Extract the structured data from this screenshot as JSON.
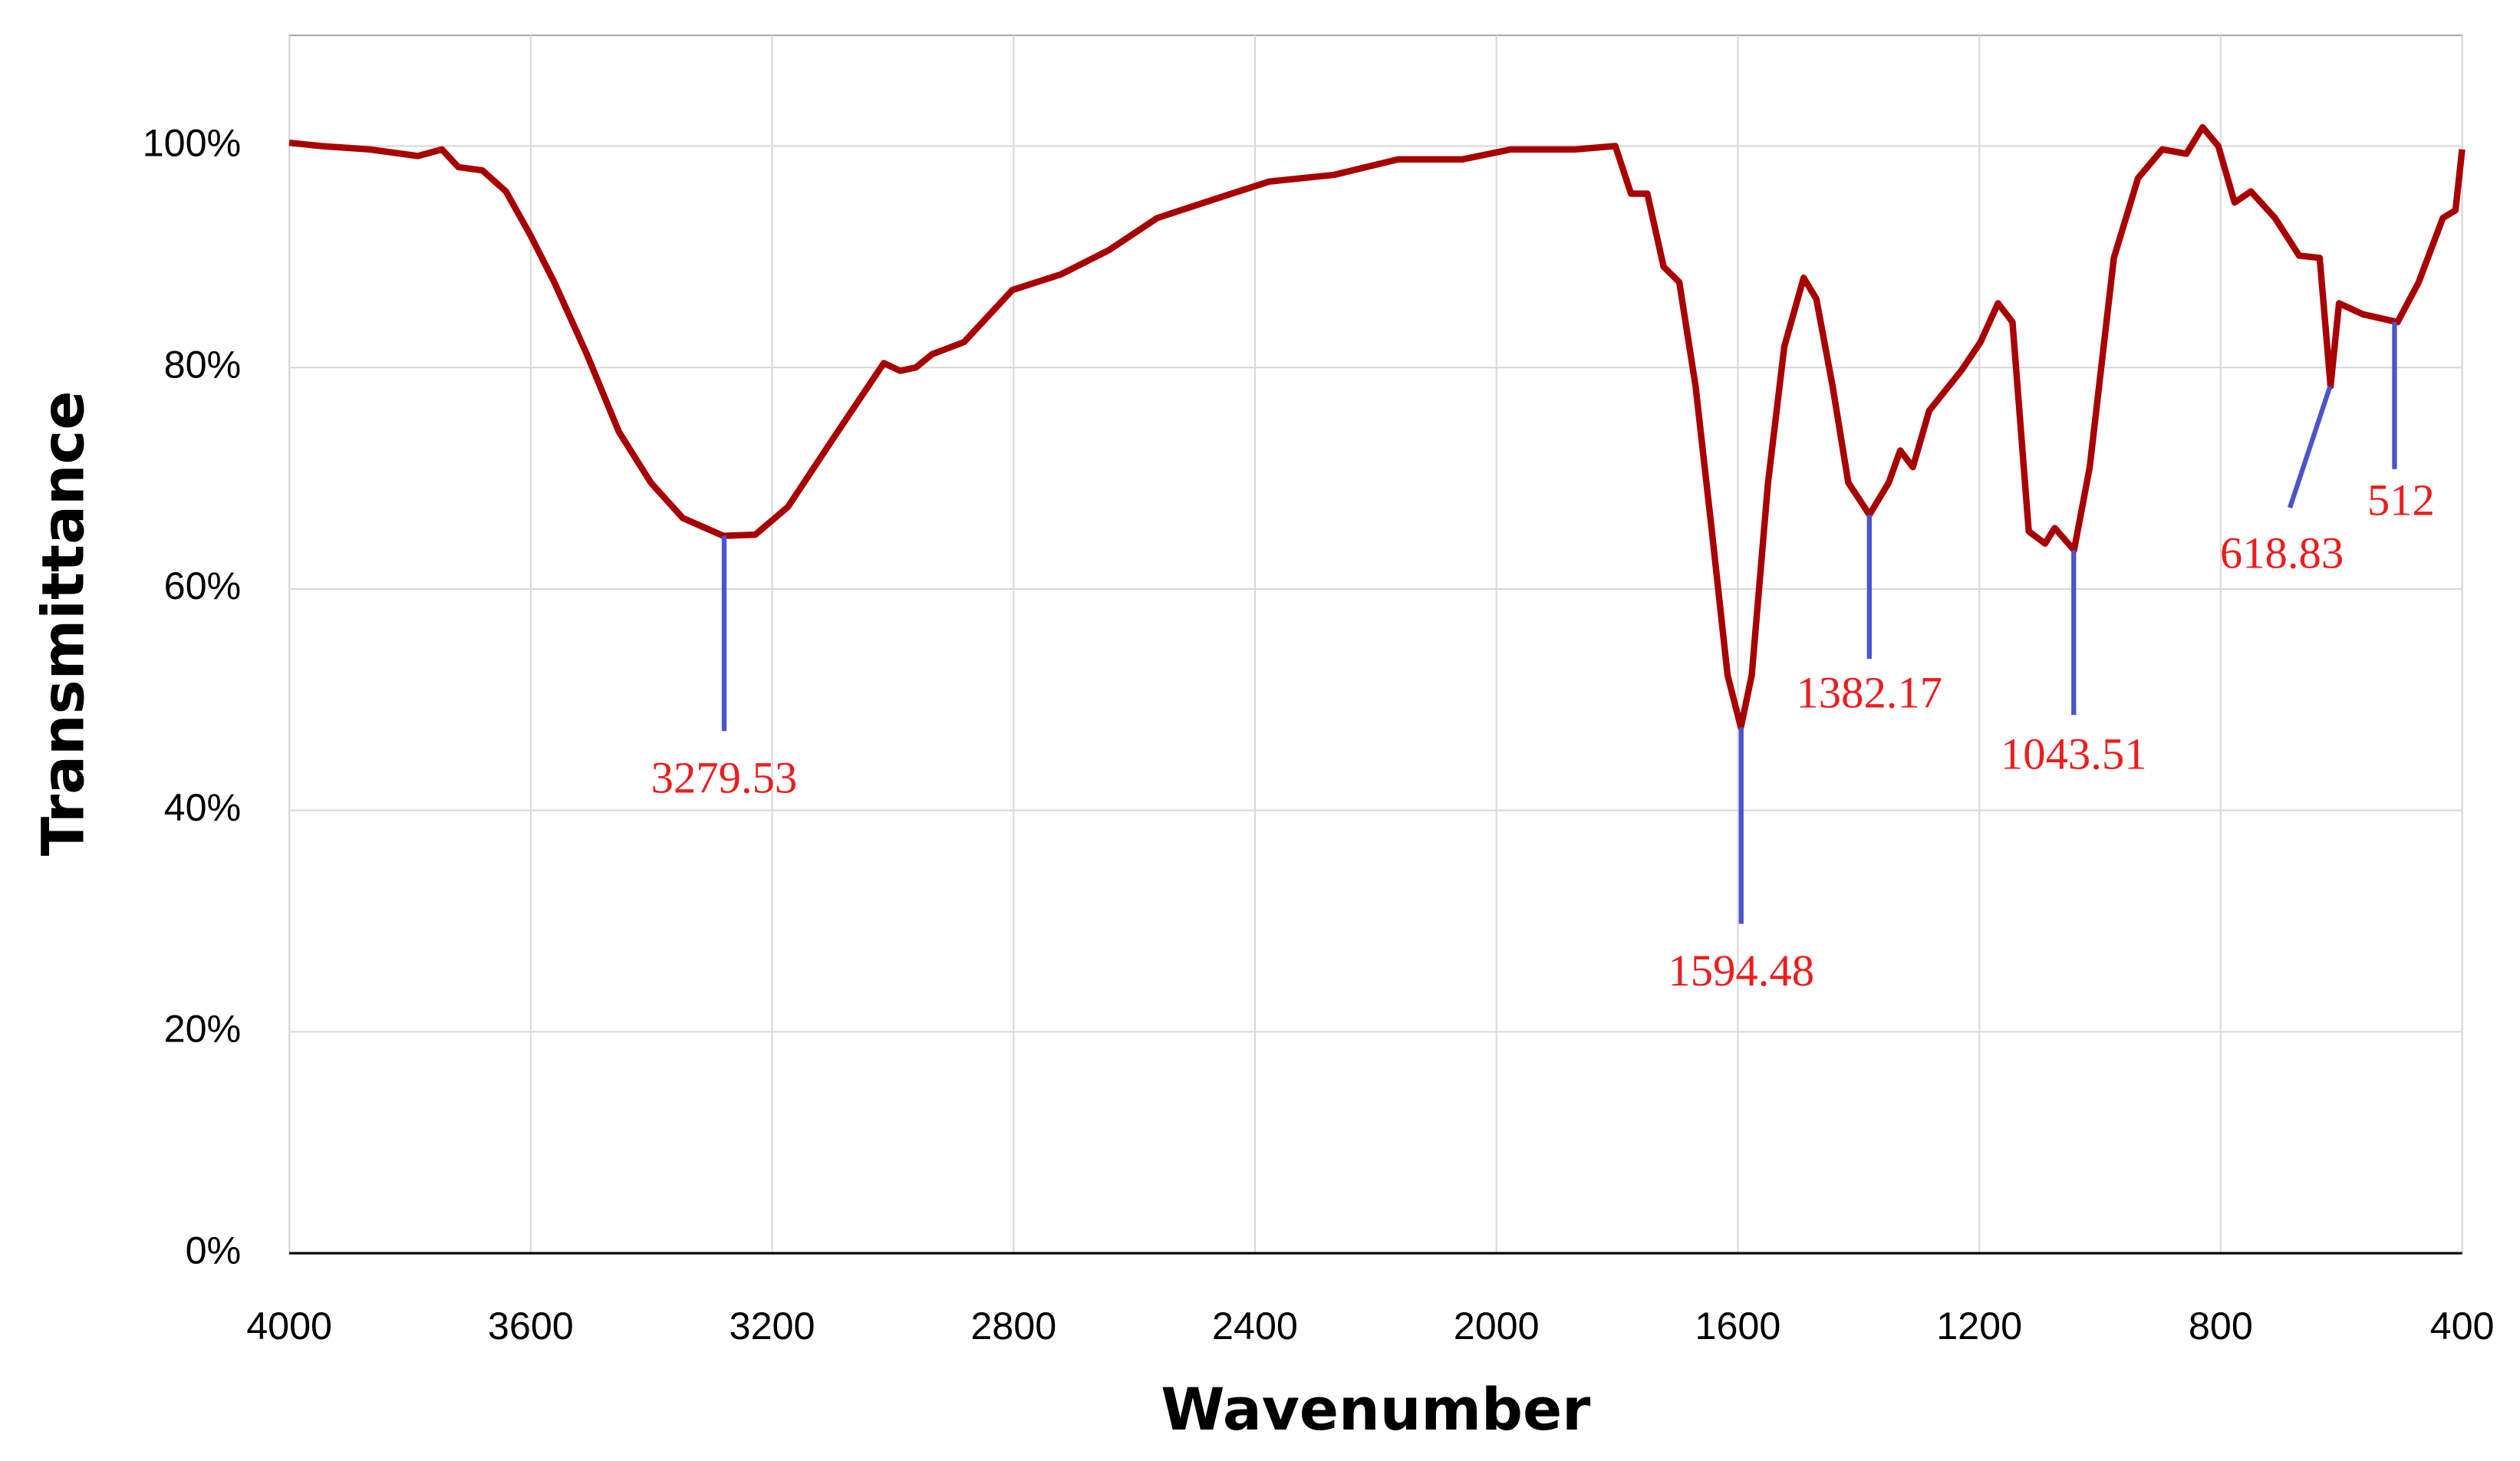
{
  "chart_data": {
    "type": "line",
    "xlabel": "Wavenumber",
    "ylabel": "Transmittance",
    "x": [
      4000,
      3947,
      3867,
      3787,
      3747,
      3720,
      3680,
      3641,
      3601,
      3561,
      3507,
      3454,
      3401,
      3348,
      3281,
      3228,
      3174,
      3095,
      3015,
      2988,
      2962,
      2935,
      2882,
      2802,
      2722,
      2642,
      2562,
      2456,
      2376,
      2269,
      2163,
      2056,
      1976,
      1870,
      1803,
      1777,
      1750,
      1723,
      1697,
      1670,
      1643,
      1617,
      1595,
      1577,
      1550,
      1523,
      1491,
      1470,
      1443,
      1417,
      1382,
      1350,
      1331,
      1310,
      1283,
      1230,
      1198,
      1169,
      1145,
      1118,
      1091,
      1075,
      1043,
      1017,
      977,
      937,
      897,
      857,
      830,
      804,
      777,
      750,
      710,
      670,
      636,
      618,
      604,
      564,
      507,
      472,
      432,
      411,
      400
    ],
    "values": [
      100.3,
      100,
      99.7,
      99.1,
      99.7,
      98.1,
      97.8,
      95.9,
      92,
      87.7,
      81.2,
      74.2,
      69.6,
      66.4,
      64.8,
      64.9,
      67.4,
      73.9,
      80.4,
      79.7,
      80,
      81.2,
      82.3,
      87,
      88.4,
      90.6,
      93.5,
      95.4,
      96.8,
      97.4,
      98.8,
      98.8,
      99.7,
      99.7,
      100,
      95.7,
      95.7,
      89.1,
      87.7,
      78.3,
      65.2,
      52.2,
      47.5,
      52.2,
      69.6,
      81.9,
      88.1,
      86.2,
      78.3,
      69.6,
      66.7,
      69.6,
      72.5,
      71,
      76.1,
      79.7,
      82.3,
      85.8,
      84.1,
      65.2,
      64.1,
      65.5,
      63.5,
      71,
      89.9,
      97.1,
      99.7,
      99.3,
      101.7,
      100,
      94.9,
      95.9,
      93.5,
      90.1,
      89.9,
      78.3,
      85.8,
      84.8,
      84.1,
      87.7,
      93.5,
      94.2,
      99.7
    ],
    "color": "#a80000",
    "xlim": [
      4000,
      400
    ],
    "xticks": [
      4000,
      3600,
      3200,
      2800,
      2400,
      2000,
      1600,
      1200,
      800,
      400
    ],
    "ylim": [
      0,
      110
    ],
    "yticks": [
      {
        "value": 0,
        "label": "0%"
      },
      {
        "value": 20,
        "label": "20%"
      },
      {
        "value": 40,
        "label": "40%"
      },
      {
        "value": 60,
        "label": "60%"
      },
      {
        "value": 80,
        "label": "80%"
      },
      {
        "value": 100,
        "label": "100%"
      }
    ],
    "grid": true,
    "annotations": [
      {
        "x": 3279.53,
        "y": 64.8
      },
      {
        "x": 1594.48,
        "y": 47.5
      },
      {
        "x": 1382.17,
        "y": 66.7
      },
      {
        "x": 1043.51,
        "y": 63.5
      },
      {
        "x": 618.83,
        "y": 78.3
      },
      {
        "x": 512,
        "y": 84.1
      }
    ],
    "annotation_color": "#ee1c1c",
    "annotation_line_color": "#4a55cc"
  }
}
